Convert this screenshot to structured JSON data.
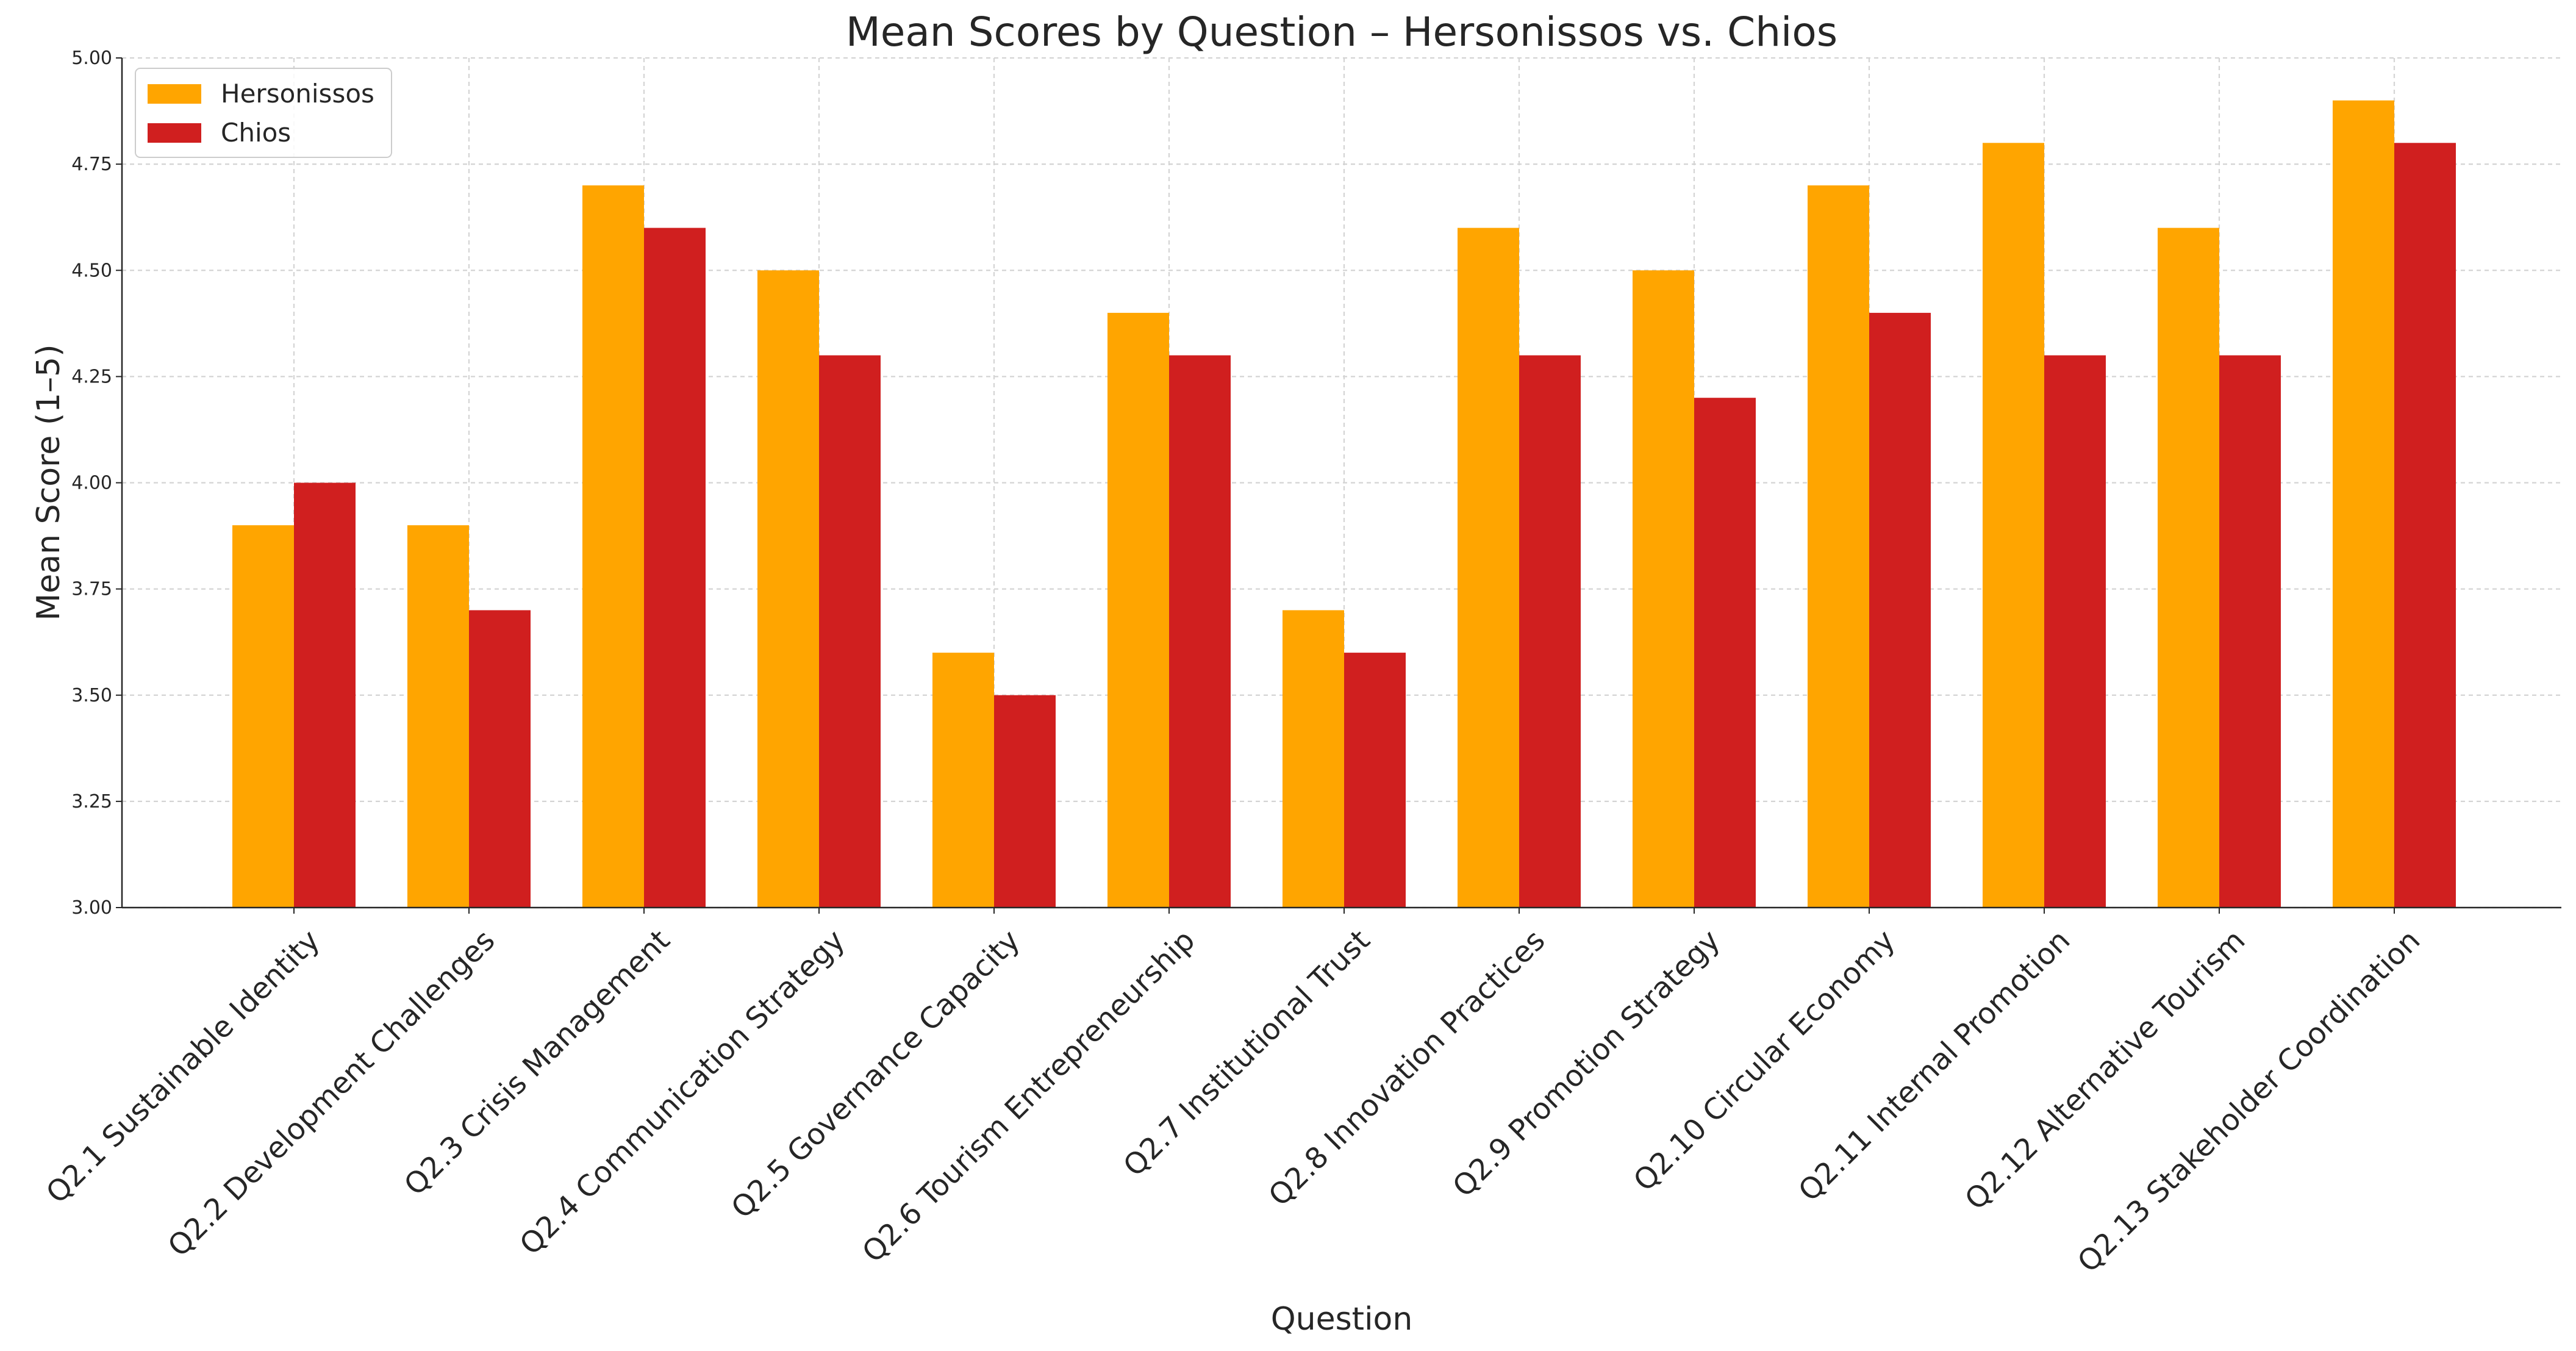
{
  "chart_data": {
    "type": "bar",
    "title": "Mean Scores by Question – Hersonissos vs. Chios",
    "xlabel": "Question",
    "ylabel": "Mean Score (1–5)",
    "ylim": [
      3.0,
      5.0
    ],
    "yticks": [
      "3.00",
      "3.25",
      "3.50",
      "3.75",
      "4.00",
      "4.25",
      "4.50",
      "4.75",
      "5.00"
    ],
    "grid": true,
    "legend_position": "top-left",
    "categories": [
      "Q2.1 Sustainable Identity",
      "Q2.2 Development Challenges",
      "Q2.3 Crisis Management",
      "Q2.4 Communication Strategy",
      "Q2.5 Governance Capacity",
      "Q2.6 Tourism Entrepreneurship",
      "Q2.7 Institutional Trust",
      "Q2.8 Innovation Practices",
      "Q2.9 Promotion Strategy",
      "Q2.10 Circular Economy",
      "Q2.11 Internal Promotion",
      "Q2.12 Alternative Tourism",
      "Q2.13 Stakeholder Coordination"
    ],
    "series": [
      {
        "name": "Hersonissos",
        "color": "#ffa500",
        "values": [
          3.9,
          3.9,
          4.7,
          4.5,
          3.6,
          4.4,
          3.7,
          4.6,
          4.5,
          4.7,
          4.8,
          4.6,
          4.9
        ]
      },
      {
        "name": "Chios",
        "color": "#d01f1f",
        "values": [
          4.0,
          3.7,
          4.6,
          4.3,
          3.5,
          4.3,
          3.6,
          4.3,
          4.2,
          4.4,
          4.3,
          4.3,
          4.8
        ]
      }
    ]
  }
}
